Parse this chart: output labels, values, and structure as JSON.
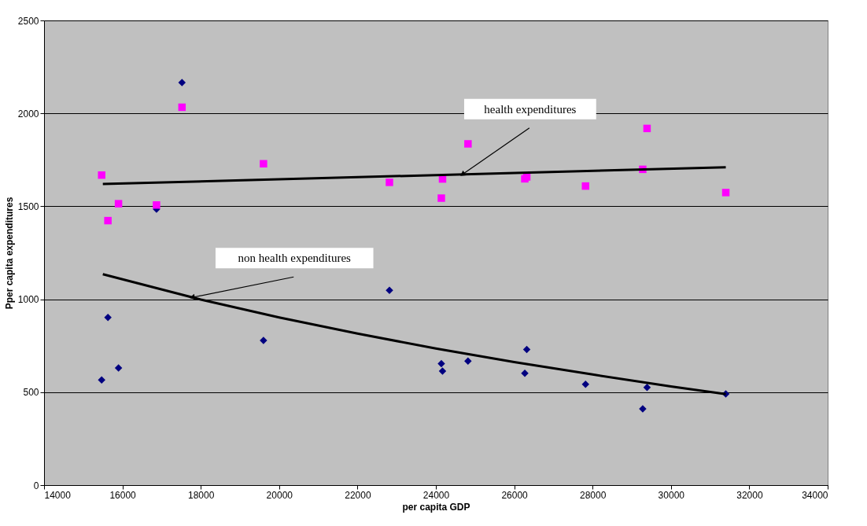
{
  "chart_data": {
    "type": "scatter",
    "xlabel": "per capita GDP",
    "ylabel": "Pper capita expenditures",
    "xlim": [
      14000,
      34000
    ],
    "xticks": [
      14000,
      16000,
      18000,
      20000,
      22000,
      24000,
      26000,
      28000,
      30000,
      32000,
      34000
    ],
    "ylim": [
      0,
      2500
    ],
    "yticks": [
      0,
      500,
      1000,
      1500,
      2000,
      2500
    ],
    "grid": "y",
    "legend": false,
    "series": [
      {
        "type": "scatter",
        "marker": "diamond",
        "color": "#000080",
        "x": [
          17520,
          16870,
          15630,
          19600,
          15900,
          15470,
          22815,
          24140,
          24170,
          24820,
          26320,
          26270,
          27820,
          29390,
          29280,
          31400
        ],
        "values": [
          2166,
          1485,
          902,
          778,
          630,
          566,
          1048,
          654,
          613,
          667,
          730,
          602,
          543,
          526,
          410,
          491
        ]
      },
      {
        "type": "scatter",
        "marker": "square",
        "color": "#ff00ff",
        "x": [
          17520,
          15470,
          19600,
          15900,
          15630,
          16870,
          22815,
          24170,
          24140,
          24820,
          26270,
          26320,
          27820,
          29390,
          29280,
          31400
        ],
        "values": [
          2033,
          1668,
          1729,
          1514,
          1423,
          1507,
          1629,
          1647,
          1544,
          1836,
          1648,
          1658,
          1609,
          1919,
          1699,
          1574
        ]
      },
      {
        "type": "line",
        "marker": "none",
        "color": "#000000",
        "x": [
          15500,
          31400
        ],
        "values": [
          1620,
          1710
        ]
      },
      {
        "type": "line",
        "marker": "none",
        "color": "#000000",
        "x": [
          15500,
          18000,
          20000,
          22000,
          24000,
          26000,
          28000,
          30000,
          31400
        ],
        "values": [
          1135,
          998,
          902,
          815,
          735,
          662,
          595,
          531,
          490
        ]
      }
    ],
    "annotations": [
      {
        "text": "health expenditures",
        "x": 24680,
        "y": 1672
      },
      {
        "text": "non health expenditures",
        "x": 17780,
        "y": 1010
      }
    ]
  }
}
